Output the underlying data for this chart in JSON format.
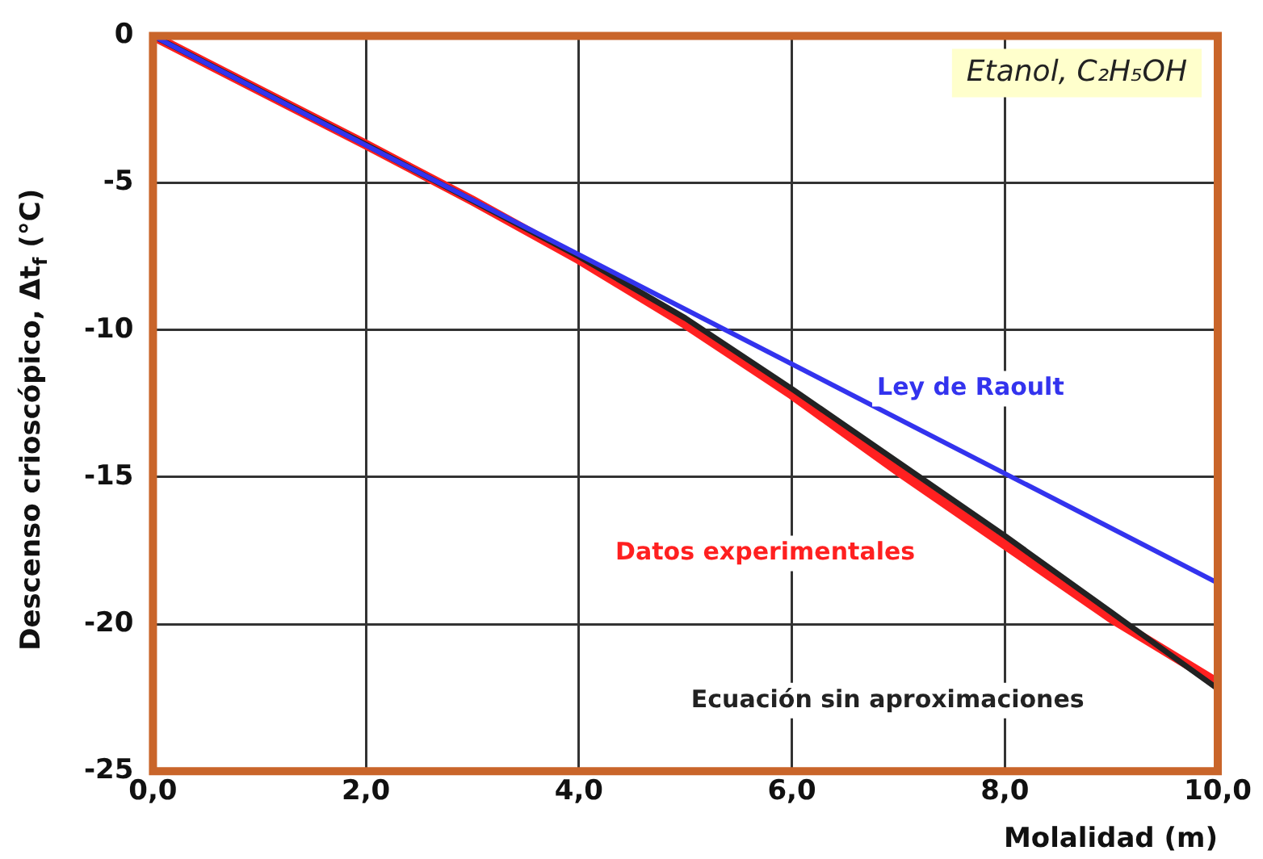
{
  "chart_data": {
    "type": "line",
    "xlabel": "Molalidad (m)",
    "ylabel": "Descenso crioscópico, Δt$_{f}$ (°C)",
    "annotations": [
      "Etanol, C₂H₅OH"
    ],
    "xlim": [
      0,
      10
    ],
    "xticks": [
      {
        "value": 0,
        "label": "0,0"
      },
      {
        "value": 2,
        "label": "2,0"
      },
      {
        "value": 4,
        "label": "4,0"
      },
      {
        "value": 6,
        "label": "6,0"
      },
      {
        "value": 8,
        "label": "8,0"
      },
      {
        "value": 10,
        "label": "10,0"
      }
    ],
    "ylim": [
      -25,
      0
    ],
    "yticks": [
      -25,
      -20,
      -15,
      -10,
      -5,
      0
    ],
    "grid": true,
    "legend": false,
    "marker": "none",
    "line_style": "solid",
    "series": [
      {
        "name": "Ley de Raoult",
        "color": "#3333ee",
        "x": [
          0,
          10
        ],
        "values": [
          0,
          -18.6
        ]
      },
      {
        "name": "Datos experimentales",
        "color": "#ff2020",
        "x": [
          0,
          1,
          2,
          3,
          4,
          5,
          6,
          7,
          8,
          9,
          10
        ],
        "values": [
          0,
          -1.85,
          -3.7,
          -5.6,
          -7.6,
          -9.8,
          -12.2,
          -14.8,
          -17.3,
          -19.8,
          -22.0
        ]
      },
      {
        "name": "Ecuación sin aproximaciones",
        "color": "#222222",
        "x": [
          0,
          1,
          2,
          3,
          4,
          5,
          6,
          7,
          8,
          9,
          10
        ],
        "values": [
          0,
          -1.85,
          -3.7,
          -5.6,
          -7.5,
          -9.6,
          -12.0,
          -14.5,
          -17.0,
          -19.6,
          -22.2
        ]
      }
    ]
  }
}
